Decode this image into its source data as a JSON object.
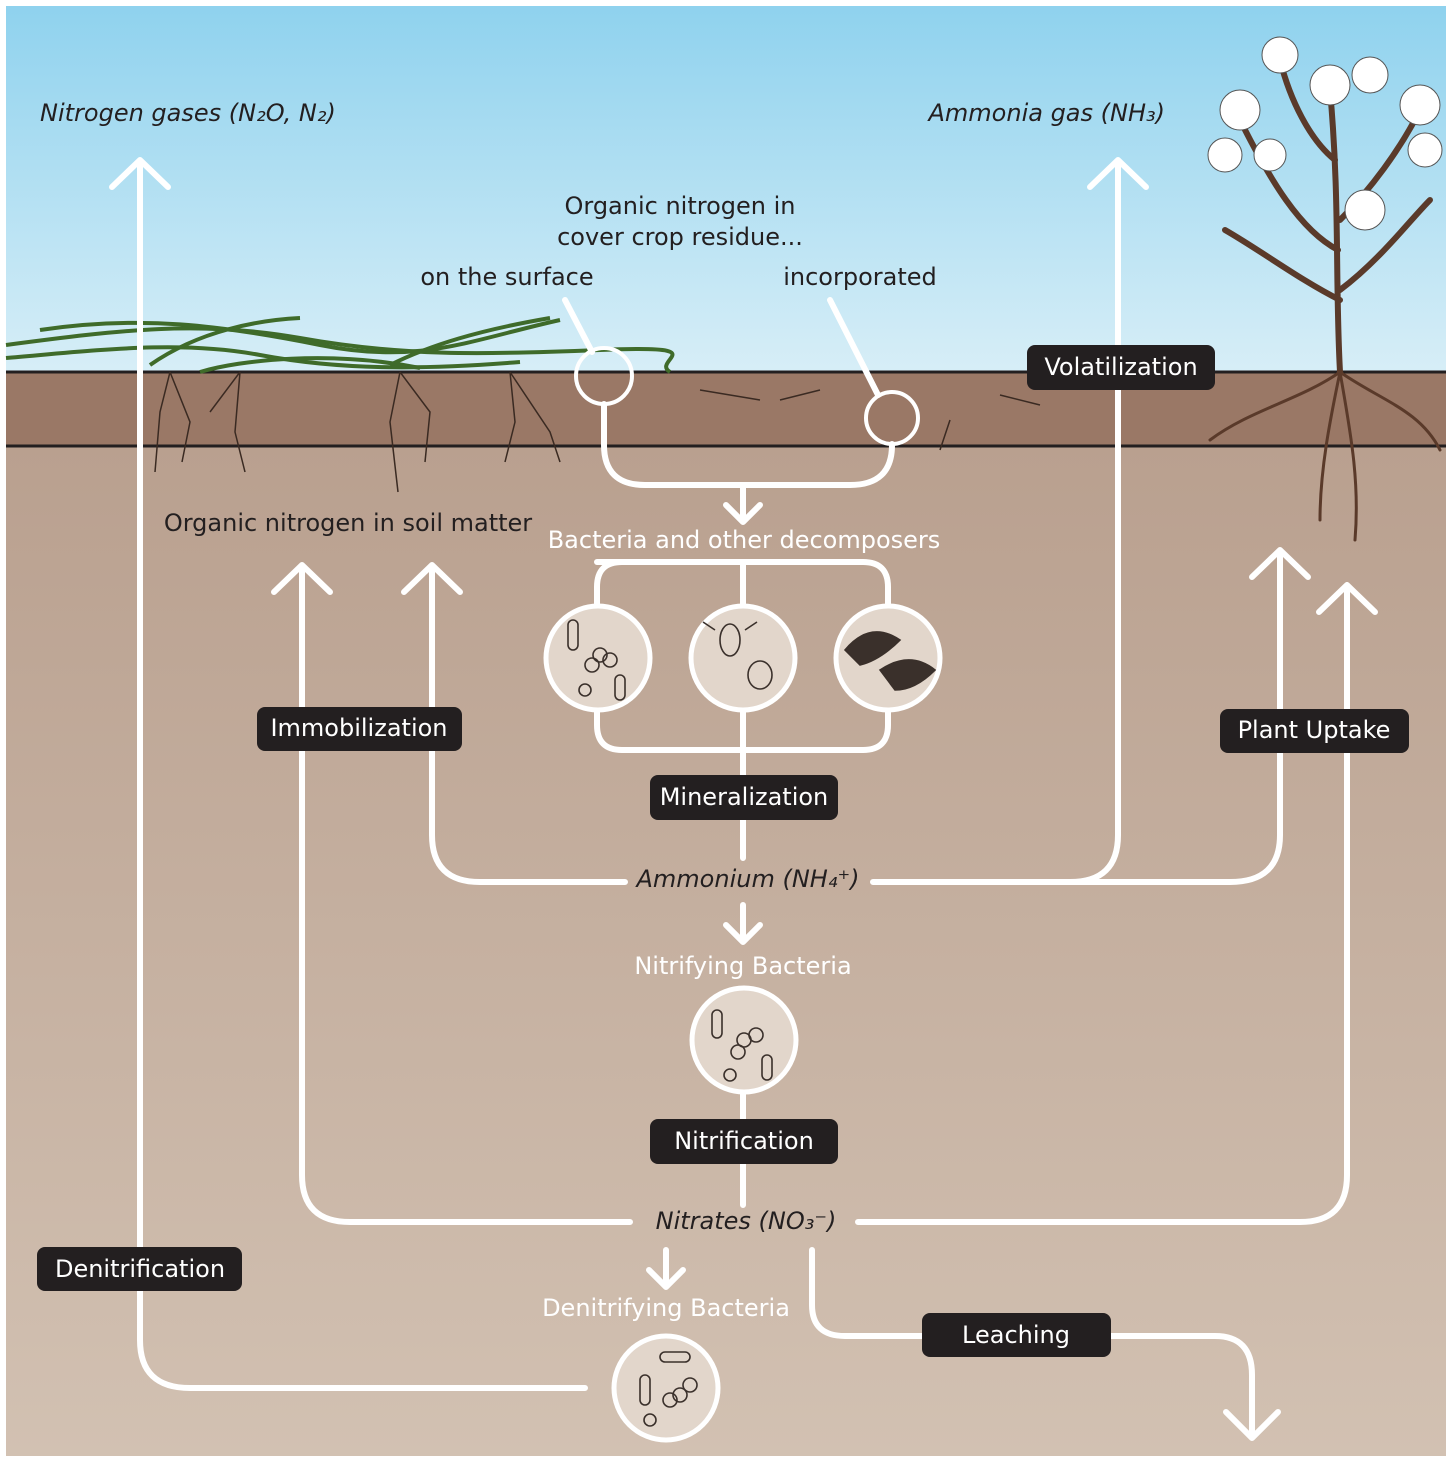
{
  "labels": {
    "nitrogen_gases": "Nitrogen gases (N₂O, N₂)",
    "ammonia_gas": "Ammonia gas (NH₃)",
    "residue_title": [
      "Organic nitrogen in",
      "cover crop residue..."
    ],
    "on_surface": "on the surface",
    "incorporated": "incorporated",
    "volatilization": "Volatilization",
    "soil_matter": "Organic nitrogen in soil matter",
    "decomposers": "Bacteria and other decomposers",
    "immobilization": "Immobilization",
    "plant_uptake": "Plant Uptake",
    "mineralization": "Mineralization",
    "ammonium": "Ammonium (NH₄⁺)",
    "nitrifying_bacteria": "Nitrifying Bacteria",
    "nitrification": "Nitrification",
    "nitrates": "Nitrates (NO₃⁻)",
    "denitrification": "Denitrification",
    "denitrifying_bacteria": "Denitrifying Bacteria",
    "leaching": "Leaching"
  }
}
